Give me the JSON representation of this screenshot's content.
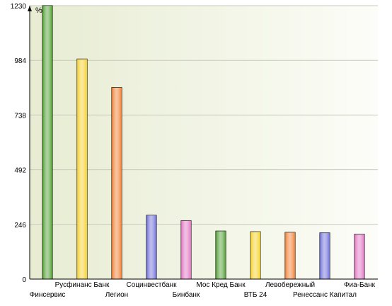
{
  "chart_data": {
    "type": "bar",
    "title": "",
    "xlabel": "",
    "ylabel": "%",
    "ylim": [
      0,
      1230
    ],
    "yticks": [
      "1230",
      "984",
      "738",
      "492",
      "246",
      "0"
    ],
    "grid": true,
    "categories": [
      "Финсервис",
      "Русфинанс Банк",
      "Легион",
      "Социнвестбанк",
      "Бинбанк",
      "Мос Кред Банк",
      "ВТБ 24",
      "Левобережный",
      "Ренессанс Капитал",
      "Фиа-Банк"
    ],
    "values": [
      1230,
      990,
      862,
      287,
      263,
      216,
      213,
      210,
      208,
      202
    ],
    "colors": [
      "#4a9a2a",
      "#f5cf22",
      "#f07a2a",
      "#6a6ad8",
      "#e070c0",
      "#4a9a2a",
      "#f5cf22",
      "#f07a2a",
      "#6a6ad8",
      "#e070c0"
    ]
  }
}
